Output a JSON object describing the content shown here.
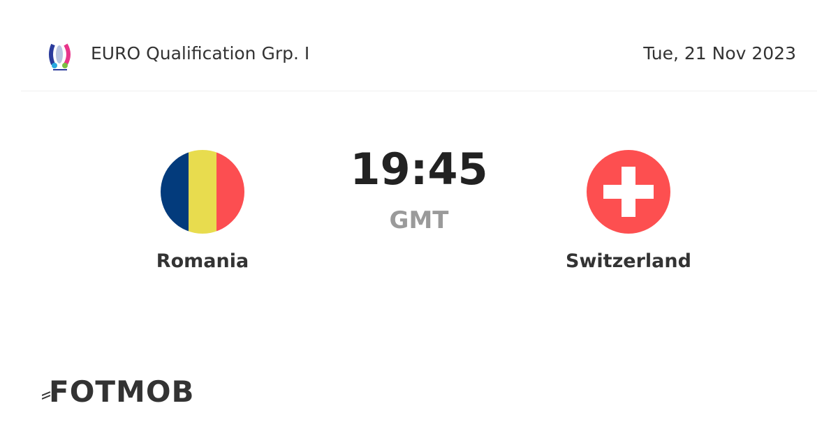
{
  "header": {
    "league_name": "EURO Qualification Grp. I",
    "date": "Tue, 21 Nov 2023",
    "league_logo_icon": "uefa-euro-2024-logo"
  },
  "match": {
    "time": "19:45",
    "timezone": "GMT",
    "home": {
      "name": "Romania",
      "flag_colors": [
        "#033b7c",
        "#e8dc4e",
        "#fc4e51"
      ]
    },
    "away": {
      "name": "Switzerland",
      "flag_colors": [
        "#fd4f50",
        "#ffffff"
      ]
    }
  },
  "footer": {
    "brand": "FOTMOB"
  }
}
